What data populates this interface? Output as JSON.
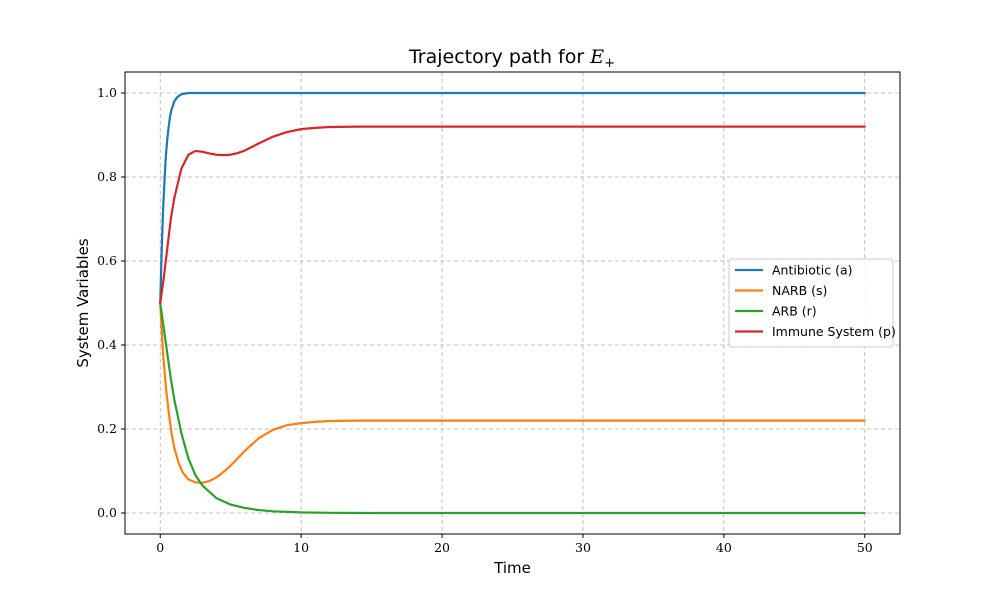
{
  "chart_data": {
    "type": "line",
    "title": {
      "prefix": "Trajectory path for ",
      "math_base": "E",
      "math_subscript": "+"
    },
    "xlabel": "Time",
    "ylabel": "System Variables",
    "xlim": [
      -2.5,
      52.5
    ],
    "ylim": [
      -0.05,
      1.05
    ],
    "xticks": [
      0,
      10,
      20,
      30,
      40,
      50
    ],
    "yticks": [
      0.0,
      0.2,
      0.4,
      0.6,
      0.8,
      1.0
    ],
    "xtick_labels": [
      "0",
      "10",
      "20",
      "30",
      "40",
      "50"
    ],
    "ytick_labels": [
      "0.0",
      "0.2",
      "0.4",
      "0.6",
      "0.8",
      "1.0"
    ],
    "grid": true,
    "legend_position": "center-right",
    "series": [
      {
        "name": "Antibiotic (a)",
        "color": "#1f77b4",
        "x": [
          0,
          0.1,
          0.2,
          0.3,
          0.4,
          0.5,
          0.6,
          0.7,
          0.8,
          1.0,
          1.2,
          1.5,
          2,
          3,
          5,
          10,
          20,
          30,
          40,
          50
        ],
        "y": [
          0.5,
          0.62,
          0.72,
          0.79,
          0.85,
          0.89,
          0.92,
          0.945,
          0.96,
          0.98,
          0.99,
          0.997,
          1.0,
          1.0,
          1.0,
          1.0,
          1.0,
          1.0,
          1.0,
          1.0
        ]
      },
      {
        "name": "NARB (s)",
        "color": "#ff7f0e",
        "x": [
          0,
          0.1,
          0.2,
          0.4,
          0.6,
          0.8,
          1.0,
          1.3,
          1.6,
          2.0,
          2.5,
          3.0,
          3.5,
          4.0,
          4.5,
          5.0,
          5.5,
          6.0,
          7.0,
          8.0,
          9.0,
          10,
          11,
          12,
          14,
          16,
          20,
          30,
          40,
          50
        ],
        "y": [
          0.5,
          0.44,
          0.38,
          0.3,
          0.24,
          0.19,
          0.155,
          0.12,
          0.096,
          0.08,
          0.073,
          0.072,
          0.076,
          0.085,
          0.098,
          0.113,
          0.13,
          0.148,
          0.178,
          0.198,
          0.209,
          0.214,
          0.217,
          0.219,
          0.22,
          0.22,
          0.22,
          0.22,
          0.22,
          0.22
        ]
      },
      {
        "name": "ARB (r)",
        "color": "#2ca02c",
        "x": [
          0,
          0.25,
          0.5,
          0.75,
          1.0,
          1.5,
          2.0,
          2.5,
          3.0,
          4.0,
          5.0,
          6.0,
          7.0,
          8.0,
          10,
          12,
          15,
          20,
          30,
          40,
          50
        ],
        "y": [
          0.5,
          0.44,
          0.38,
          0.32,
          0.27,
          0.19,
          0.13,
          0.09,
          0.065,
          0.035,
          0.02,
          0.012,
          0.007,
          0.004,
          0.0015,
          0.0005,
          0.0,
          0.0,
          0.0,
          0.0,
          0.0
        ]
      },
      {
        "name": "Immune System (p)",
        "color": "#d62728",
        "x": [
          0,
          0.25,
          0.5,
          0.75,
          1.0,
          1.5,
          2.0,
          2.5,
          3.0,
          3.5,
          4.0,
          4.5,
          5.0,
          5.5,
          6.0,
          7.0,
          8.0,
          9.0,
          10,
          11,
          12,
          14,
          16,
          20,
          30,
          40,
          50
        ],
        "y": [
          0.5,
          0.56,
          0.63,
          0.7,
          0.75,
          0.82,
          0.853,
          0.862,
          0.86,
          0.856,
          0.853,
          0.852,
          0.853,
          0.857,
          0.863,
          0.88,
          0.896,
          0.907,
          0.914,
          0.917,
          0.919,
          0.92,
          0.92,
          0.92,
          0.92,
          0.92,
          0.92
        ]
      }
    ]
  }
}
